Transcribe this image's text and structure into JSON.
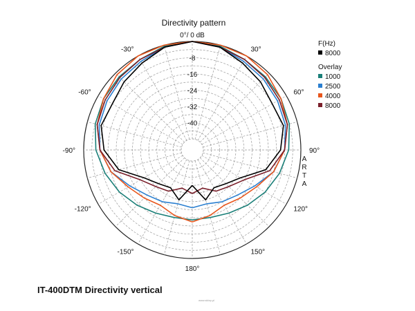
{
  "chart_data": {
    "type": "polar",
    "title": "Directivity pattern",
    "side_label": "ARTA",
    "caption": "IT-400DTM Directivity vertical",
    "watermark": "www.sklep.pl",
    "radial_axis": {
      "range_db": [
        -48,
        0
      ],
      "ring_step_db": 4,
      "tick_labels": [
        "0°/ 0 dB",
        "-8",
        "-16",
        "-24",
        "-32",
        "-40"
      ]
    },
    "angle_labels": [
      {
        "angle": 0,
        "text": "0°/ 0 dB"
      },
      {
        "angle": 30,
        "text": "30°"
      },
      {
        "angle": 60,
        "text": "60°"
      },
      {
        "angle": 90,
        "text": "90°"
      },
      {
        "angle": 120,
        "text": "120°"
      },
      {
        "angle": 150,
        "text": "150°"
      },
      {
        "angle": 180,
        "text": "180°"
      },
      {
        "angle": -150,
        "text": "-150°"
      },
      {
        "angle": -120,
        "text": "-120°"
      },
      {
        "angle": -90,
        "text": "-90°"
      },
      {
        "angle": -60,
        "text": "-60°"
      },
      {
        "angle": -30,
        "text": "-30°"
      }
    ],
    "legend": {
      "header": "F(Hz)",
      "overlay_header": "Overlay",
      "main": {
        "name": "8000",
        "color": "#000000"
      },
      "overlays": [
        {
          "name": "1000",
          "color": "#1a7f78"
        },
        {
          "name": "2500",
          "color": "#2a7fd0"
        },
        {
          "name": "4000",
          "color": "#e8561c"
        },
        {
          "name": "8000",
          "color": "#7a1f2a"
        }
      ]
    },
    "series": [
      {
        "name": "1000",
        "color": "#1a7f78",
        "angles": [
          -180,
          -165,
          -150,
          -135,
          -120,
          -105,
          -90,
          -75,
          -60,
          -45,
          -30,
          -15,
          0,
          15,
          30,
          45,
          60,
          75,
          90,
          105,
          120,
          135,
          150,
          165,
          180
        ],
        "values": [
          -19,
          -19,
          -17.5,
          -15,
          -12,
          -9,
          -6,
          -4,
          -3,
          -2.5,
          -2,
          -0.5,
          0,
          -0.5,
          -2,
          -2.5,
          -3,
          -4,
          -6,
          -9,
          -12,
          -15,
          -17.5,
          -19,
          -19
        ]
      },
      {
        "name": "2500",
        "color": "#2a7fd0",
        "angles": [
          -180,
          -165,
          -150,
          -135,
          -120,
          -105,
          -90,
          -75,
          -60,
          -45,
          -30,
          -15,
          0,
          15,
          30,
          45,
          60,
          75,
          90,
          105,
          120,
          135,
          150,
          165,
          180
        ],
        "values": [
          -25,
          -26,
          -24,
          -22,
          -18,
          -12,
          -8,
          -6,
          -5,
          -4,
          -3,
          -1,
          0,
          -1,
          -3,
          -4,
          -5,
          -6,
          -8,
          -12,
          -18,
          -22,
          -24,
          -26,
          -25
        ]
      },
      {
        "name": "4000",
        "color": "#e8561c",
        "angles": [
          -180,
          -165,
          -150,
          -135,
          -120,
          -105,
          -90,
          -75,
          -60,
          -45,
          -30,
          -15,
          0,
          15,
          30,
          45,
          60,
          75,
          90,
          105,
          120,
          135,
          150,
          165,
          180
        ],
        "values": [
          -18,
          -20,
          -22,
          -20,
          -17,
          -12,
          -8,
          -5,
          -3,
          -1,
          0,
          0,
          0,
          0,
          0,
          -1,
          -3,
          -5,
          -8,
          -12,
          -17,
          -20,
          -22,
          -20,
          -18
        ]
      },
      {
        "name": "8000 (overlay)",
        "color": "#7a1f2a",
        "angles": [
          -180,
          -165,
          -150,
          -135,
          -120,
          -105,
          -90,
          -75,
          -60,
          -45,
          -30,
          -15,
          0,
          15,
          30,
          45,
          60,
          75,
          90,
          105,
          120,
          135,
          150,
          165,
          180
        ],
        "values": [
          -32,
          -34,
          -30,
          -28,
          -24,
          -14,
          -8,
          -5,
          -4,
          -3,
          -2,
          -1,
          0,
          -1,
          -2,
          -3,
          -4,
          -5,
          -8,
          -14,
          -24,
          -28,
          -30,
          -34,
          -32
        ]
      },
      {
        "name": "8000",
        "color": "#000000",
        "angles": [
          -180,
          -165,
          -150,
          -135,
          -120,
          -105,
          -90,
          -75,
          -60,
          -45,
          -30,
          -15,
          0,
          15,
          30,
          45,
          60,
          75,
          90,
          105,
          120,
          135,
          150,
          165,
          180
        ],
        "values": [
          -36,
          -28,
          -32,
          -30,
          -26,
          -16,
          -10,
          -7,
          -8,
          -6,
          -4,
          -1,
          0,
          -1,
          -4,
          -6,
          -8,
          -7,
          -10,
          -16,
          -26,
          -30,
          -32,
          -28,
          -36
        ]
      }
    ]
  }
}
